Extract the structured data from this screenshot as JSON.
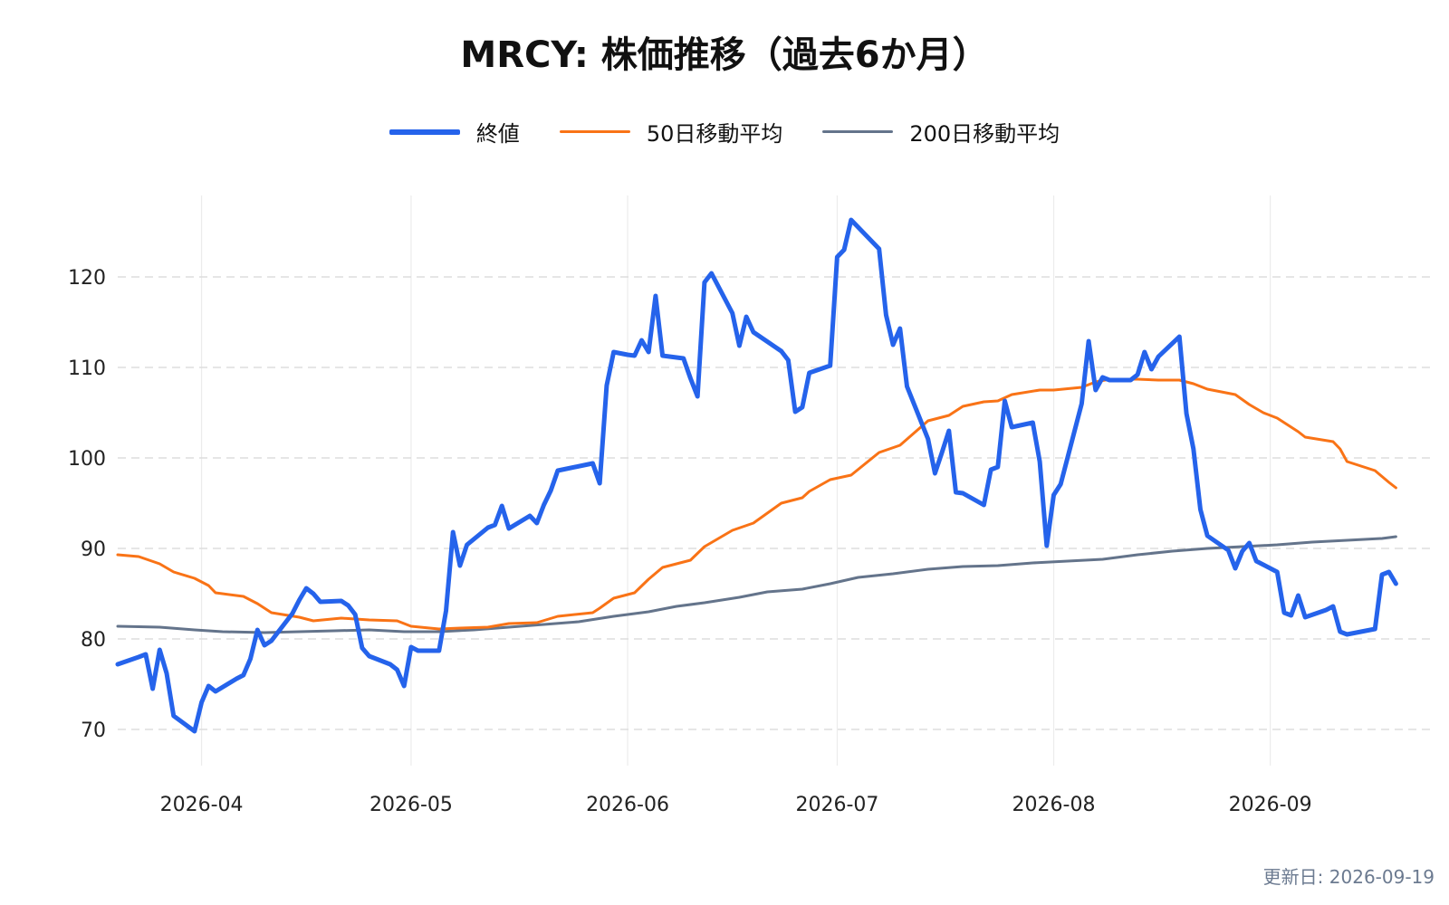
{
  "chart_data": {
    "type": "line",
    "title": "MRCY: 株価推移（過去6か月）",
    "xlabel": "",
    "ylabel": "",
    "ylim": [
      66,
      129
    ],
    "xlim": [
      "2026-03-20",
      "2026-09-24"
    ],
    "y_ticks": [
      70,
      80,
      90,
      100,
      110,
      120
    ],
    "y_tick_labels": [
      "70",
      "80",
      "90",
      "100",
      "110",
      "120"
    ],
    "x_ticks": [
      "2026-04-01",
      "2026-05-01",
      "2026-06-01",
      "2026-07-01",
      "2026-08-01",
      "2026-09-01"
    ],
    "x_tick_labels": [
      "2026-04",
      "2026-05",
      "2026-06",
      "2026-07",
      "2026-08",
      "2026-09"
    ],
    "grid": {
      "horizontal": true,
      "horizontal_style": "dashed",
      "vertical": true
    },
    "legend_position": "top-center",
    "series": [
      {
        "name": "終値",
        "color": "#2563eb",
        "points": [
          [
            "2026-03-20",
            77.2
          ],
          [
            "2026-03-23",
            78.0
          ],
          [
            "2026-03-24",
            78.3
          ],
          [
            "2026-03-25",
            74.5
          ],
          [
            "2026-03-26",
            78.8
          ],
          [
            "2026-03-27",
            76.2
          ],
          [
            "2026-03-28",
            71.5
          ],
          [
            "2026-03-31",
            69.8
          ],
          [
            "2026-04-01",
            73.0
          ],
          [
            "2026-04-02",
            74.8
          ],
          [
            "2026-04-03",
            74.2
          ],
          [
            "2026-04-06",
            75.6
          ],
          [
            "2026-04-07",
            76.0
          ],
          [
            "2026-04-08",
            77.8
          ],
          [
            "2026-04-09",
            81.0
          ],
          [
            "2026-04-10",
            79.3
          ],
          [
            "2026-04-11",
            79.8
          ],
          [
            "2026-04-14",
            82.8
          ],
          [
            "2026-04-15",
            84.3
          ],
          [
            "2026-04-16",
            85.6
          ],
          [
            "2026-04-17",
            85.0
          ],
          [
            "2026-04-18",
            84.1
          ],
          [
            "2026-04-21",
            84.2
          ],
          [
            "2026-04-22",
            83.7
          ],
          [
            "2026-04-23",
            82.7
          ],
          [
            "2026-04-24",
            79.0
          ],
          [
            "2026-04-25",
            78.1
          ],
          [
            "2026-04-28",
            77.2
          ],
          [
            "2026-04-29",
            76.6
          ],
          [
            "2026-04-30",
            74.8
          ],
          [
            "2026-05-01",
            79.1
          ],
          [
            "2026-05-02",
            78.7
          ],
          [
            "2026-05-05",
            78.7
          ],
          [
            "2026-05-06",
            83.1
          ],
          [
            "2026-05-07",
            91.8
          ],
          [
            "2026-05-08",
            88.1
          ],
          [
            "2026-05-09",
            90.4
          ],
          [
            "2026-05-12",
            92.3
          ],
          [
            "2026-05-13",
            92.6
          ],
          [
            "2026-05-14",
            94.7
          ],
          [
            "2026-05-15",
            92.2
          ],
          [
            "2026-05-18",
            93.6
          ],
          [
            "2026-05-19",
            92.8
          ],
          [
            "2026-05-20",
            94.8
          ],
          [
            "2026-05-21",
            96.4
          ],
          [
            "2026-05-22",
            98.6
          ],
          [
            "2026-05-27",
            99.4
          ],
          [
            "2026-05-28",
            97.2
          ],
          [
            "2026-05-29",
            108.0
          ],
          [
            "2026-05-30",
            111.7
          ],
          [
            "2026-06-01",
            111.4
          ],
          [
            "2026-06-02",
            111.3
          ],
          [
            "2026-06-03",
            113.0
          ],
          [
            "2026-06-04",
            111.7
          ],
          [
            "2026-06-05",
            117.9
          ],
          [
            "2026-06-06",
            111.3
          ],
          [
            "2026-06-09",
            111.0
          ],
          [
            "2026-06-10",
            108.8
          ],
          [
            "2026-06-11",
            106.8
          ],
          [
            "2026-06-12",
            119.4
          ],
          [
            "2026-06-13",
            120.4
          ],
          [
            "2026-06-16",
            116.0
          ],
          [
            "2026-06-17",
            112.4
          ],
          [
            "2026-06-18",
            115.6
          ],
          [
            "2026-06-19",
            113.9
          ],
          [
            "2026-06-23",
            111.8
          ],
          [
            "2026-06-24",
            110.8
          ],
          [
            "2026-06-25",
            105.1
          ],
          [
            "2026-06-26",
            105.6
          ],
          [
            "2026-06-27",
            109.4
          ],
          [
            "2026-06-30",
            110.2
          ],
          [
            "2026-07-01",
            122.2
          ],
          [
            "2026-07-02",
            123.0
          ],
          [
            "2026-07-03",
            126.3
          ],
          [
            "2026-07-07",
            123.1
          ],
          [
            "2026-07-08",
            115.8
          ],
          [
            "2026-07-09",
            112.5
          ],
          [
            "2026-07-10",
            114.3
          ],
          [
            "2026-07-11",
            107.9
          ],
          [
            "2026-07-14",
            102.1
          ],
          [
            "2026-07-15",
            98.3
          ],
          [
            "2026-07-16",
            100.6
          ],
          [
            "2026-07-17",
            103.0
          ],
          [
            "2026-07-18",
            96.2
          ],
          [
            "2026-07-19",
            96.1
          ],
          [
            "2026-07-22",
            94.8
          ],
          [
            "2026-07-23",
            98.7
          ],
          [
            "2026-07-24",
            99.0
          ],
          [
            "2026-07-25",
            106.3
          ],
          [
            "2026-07-26",
            103.4
          ],
          [
            "2026-07-29",
            103.9
          ],
          [
            "2026-07-30",
            99.6
          ],
          [
            "2026-07-31",
            90.3
          ],
          [
            "2026-08-01",
            95.9
          ],
          [
            "2026-08-02",
            97.1
          ],
          [
            "2026-08-05",
            106.0
          ],
          [
            "2026-08-06",
            112.9
          ],
          [
            "2026-08-07",
            107.5
          ],
          [
            "2026-08-08",
            108.9
          ],
          [
            "2026-08-09",
            108.6
          ],
          [
            "2026-08-12",
            108.6
          ],
          [
            "2026-08-13",
            109.2
          ],
          [
            "2026-08-14",
            111.7
          ],
          [
            "2026-08-15",
            109.8
          ],
          [
            "2026-08-16",
            111.2
          ],
          [
            "2026-08-19",
            113.4
          ],
          [
            "2026-08-20",
            104.9
          ],
          [
            "2026-08-21",
            101.0
          ],
          [
            "2026-08-22",
            94.3
          ],
          [
            "2026-08-23",
            91.4
          ],
          [
            "2026-08-26",
            89.8
          ],
          [
            "2026-08-27",
            87.8
          ],
          [
            "2026-08-28",
            89.7
          ],
          [
            "2026-08-29",
            90.6
          ],
          [
            "2026-08-30",
            88.6
          ],
          [
            "2026-09-02",
            87.4
          ],
          [
            "2026-09-03",
            82.9
          ],
          [
            "2026-09-04",
            82.6
          ],
          [
            "2026-09-05",
            84.8
          ],
          [
            "2026-09-06",
            82.4
          ],
          [
            "2026-09-09",
            83.2
          ],
          [
            "2026-09-10",
            83.6
          ],
          [
            "2026-09-11",
            80.8
          ],
          [
            "2026-09-12",
            80.5
          ],
          [
            "2026-09-16",
            81.1
          ],
          [
            "2026-09-17",
            87.1
          ],
          [
            "2026-09-18",
            87.4
          ],
          [
            "2026-09-19",
            86.1
          ]
        ]
      },
      {
        "name": "50日移動平均",
        "color": "#f97316",
        "points": [
          [
            "2026-03-20",
            89.3
          ],
          [
            "2026-03-23",
            89.1
          ],
          [
            "2026-03-26",
            88.3
          ],
          [
            "2026-03-28",
            87.4
          ],
          [
            "2026-03-31",
            86.7
          ],
          [
            "2026-04-02",
            85.9
          ],
          [
            "2026-04-03",
            85.1
          ],
          [
            "2026-04-07",
            84.7
          ],
          [
            "2026-04-09",
            83.9
          ],
          [
            "2026-04-11",
            82.9
          ],
          [
            "2026-04-15",
            82.4
          ],
          [
            "2026-04-17",
            82.0
          ],
          [
            "2026-04-21",
            82.3
          ],
          [
            "2026-04-25",
            82.1
          ],
          [
            "2026-04-29",
            82.0
          ],
          [
            "2026-05-01",
            81.4
          ],
          [
            "2026-05-05",
            81.1
          ],
          [
            "2026-05-08",
            81.2
          ],
          [
            "2026-05-12",
            81.3
          ],
          [
            "2026-05-15",
            81.7
          ],
          [
            "2026-05-19",
            81.8
          ],
          [
            "2026-05-22",
            82.5
          ],
          [
            "2026-05-27",
            82.9
          ],
          [
            "2026-05-28",
            83.4
          ],
          [
            "2026-05-30",
            84.5
          ],
          [
            "2026-06-02",
            85.1
          ],
          [
            "2026-06-04",
            86.6
          ],
          [
            "2026-06-06",
            87.9
          ],
          [
            "2026-06-10",
            88.7
          ],
          [
            "2026-06-12",
            90.2
          ],
          [
            "2026-06-16",
            92.0
          ],
          [
            "2026-06-19",
            92.8
          ],
          [
            "2026-06-23",
            95.0
          ],
          [
            "2026-06-26",
            95.6
          ],
          [
            "2026-06-27",
            96.3
          ],
          [
            "2026-06-30",
            97.6
          ],
          [
            "2026-07-03",
            98.1
          ],
          [
            "2026-07-07",
            100.6
          ],
          [
            "2026-07-10",
            101.4
          ],
          [
            "2026-07-14",
            104.1
          ],
          [
            "2026-07-17",
            104.7
          ],
          [
            "2026-07-19",
            105.7
          ],
          [
            "2026-07-22",
            106.2
          ],
          [
            "2026-07-24",
            106.3
          ],
          [
            "2026-07-26",
            107.0
          ],
          [
            "2026-07-30",
            107.5
          ],
          [
            "2026-08-01",
            107.5
          ],
          [
            "2026-08-05",
            107.8
          ],
          [
            "2026-08-07",
            108.4
          ],
          [
            "2026-08-09",
            108.7
          ],
          [
            "2026-08-13",
            108.7
          ],
          [
            "2026-08-16",
            108.6
          ],
          [
            "2026-08-19",
            108.6
          ],
          [
            "2026-08-21",
            108.2
          ],
          [
            "2026-08-23",
            107.6
          ],
          [
            "2026-08-27",
            107.0
          ],
          [
            "2026-08-29",
            105.9
          ],
          [
            "2026-08-31",
            105.0
          ],
          [
            "2026-09-02",
            104.4
          ],
          [
            "2026-09-05",
            102.9
          ],
          [
            "2026-09-06",
            102.3
          ],
          [
            "2026-09-10",
            101.8
          ],
          [
            "2026-09-11",
            101.0
          ],
          [
            "2026-09-12",
            99.6
          ],
          [
            "2026-09-16",
            98.6
          ],
          [
            "2026-09-18",
            97.3
          ],
          [
            "2026-09-19",
            96.7
          ]
        ]
      },
      {
        "name": "200日移動平均",
        "color": "#64748b",
        "points": [
          [
            "2026-03-20",
            81.4
          ],
          [
            "2026-03-26",
            81.3
          ],
          [
            "2026-03-31",
            81.0
          ],
          [
            "2026-04-04",
            80.8
          ],
          [
            "2026-04-10",
            80.7
          ],
          [
            "2026-04-15",
            80.8
          ],
          [
            "2026-04-20",
            80.9
          ],
          [
            "2026-04-25",
            81.0
          ],
          [
            "2026-04-30",
            80.8
          ],
          [
            "2026-05-05",
            80.8
          ],
          [
            "2026-05-10",
            81.0
          ],
          [
            "2026-05-15",
            81.3
          ],
          [
            "2026-05-20",
            81.6
          ],
          [
            "2026-05-25",
            81.9
          ],
          [
            "2026-05-30",
            82.5
          ],
          [
            "2026-06-04",
            83.0
          ],
          [
            "2026-06-08",
            83.6
          ],
          [
            "2026-06-12",
            84.0
          ],
          [
            "2026-06-17",
            84.6
          ],
          [
            "2026-06-21",
            85.2
          ],
          [
            "2026-06-26",
            85.5
          ],
          [
            "2026-06-30",
            86.1
          ],
          [
            "2026-07-04",
            86.8
          ],
          [
            "2026-07-09",
            87.2
          ],
          [
            "2026-07-14",
            87.7
          ],
          [
            "2026-07-19",
            88.0
          ],
          [
            "2026-07-24",
            88.1
          ],
          [
            "2026-07-29",
            88.4
          ],
          [
            "2026-08-03",
            88.6
          ],
          [
            "2026-08-08",
            88.8
          ],
          [
            "2026-08-13",
            89.3
          ],
          [
            "2026-08-18",
            89.7
          ],
          [
            "2026-08-23",
            90.0
          ],
          [
            "2026-08-28",
            90.2
          ],
          [
            "2026-09-02",
            90.4
          ],
          [
            "2026-09-07",
            90.7
          ],
          [
            "2026-09-12",
            90.9
          ],
          [
            "2026-09-17",
            91.1
          ],
          [
            "2026-09-19",
            91.3
          ]
        ]
      }
    ]
  },
  "footer": {
    "updated_label": "更新日: 2026-09-19"
  }
}
